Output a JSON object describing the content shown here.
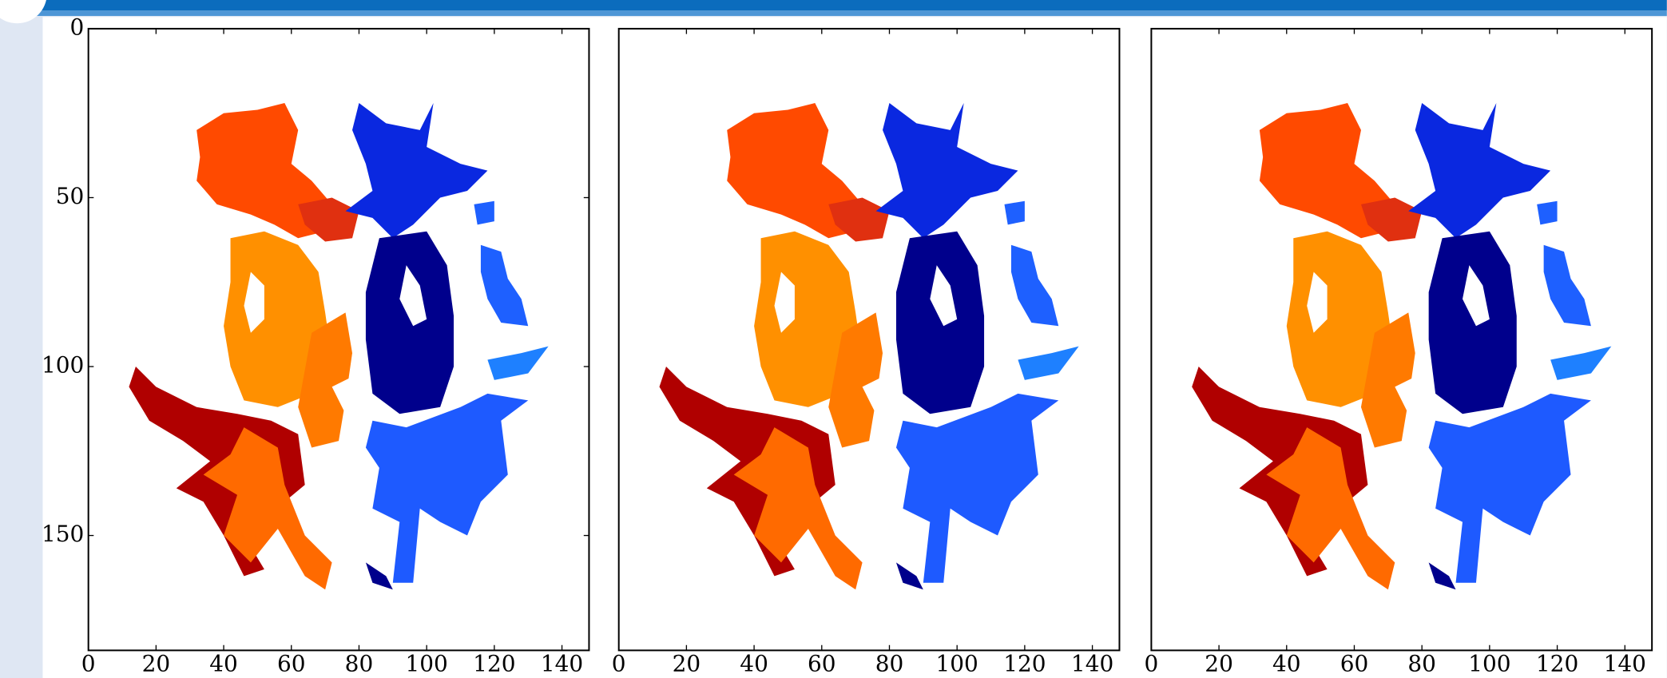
{
  "chart_data": [
    {
      "type": "image",
      "xlim": [
        0,
        148
      ],
      "ylim": [
        184,
        0
      ],
      "xticks": [
        0,
        20,
        40,
        60,
        80,
        100,
        120,
        140
      ],
      "yticks": [
        0,
        50,
        100,
        150
      ]
    },
    {
      "type": "image",
      "xlim": [
        0,
        148
      ],
      "ylim": [
        184,
        0
      ],
      "xticks": [
        0,
        20,
        40,
        60,
        80,
        100,
        120,
        140
      ]
    },
    {
      "type": "image",
      "xlim": [
        0,
        148
      ],
      "ylim": [
        184,
        0
      ],
      "xticks": [
        0,
        20,
        40,
        60,
        80,
        100,
        120,
        140
      ]
    }
  ]
}
